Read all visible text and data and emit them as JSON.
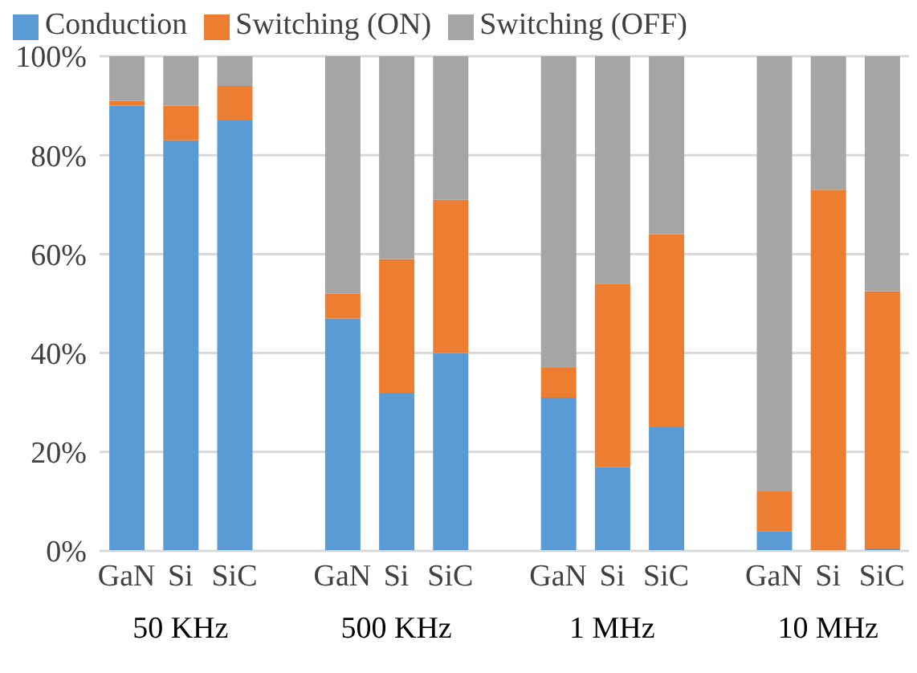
{
  "chart_data": {
    "type": "bar",
    "stacked": true,
    "legend": "top",
    "grid": "y",
    "categories": [
      "GaN",
      "Si",
      "SiC",
      null,
      "GaN",
      "Si",
      "SiC",
      null,
      "GaN",
      "Si",
      "SiC",
      null,
      "GaN",
      "Si",
      "SiC"
    ],
    "series": [
      {
        "name": "Conduction",
        "color": "#5b9bd5",
        "values": [
          90,
          83,
          87,
          null,
          47,
          32,
          40,
          null,
          31,
          17,
          25,
          null,
          4,
          0,
          0.5
        ]
      },
      {
        "name": "Switching (ON)",
        "color": "#ed7d31",
        "values": [
          1,
          7,
          7,
          null,
          5,
          27,
          31,
          null,
          6,
          37,
          39,
          null,
          8,
          73,
          52
        ]
      },
      {
        "name": "Switching (OFF)",
        "color": "#a5a5a5",
        "values": [
          9,
          10,
          6,
          null,
          48,
          41,
          29,
          null,
          63,
          46,
          36,
          null,
          88,
          27,
          47.5
        ]
      }
    ],
    "ylim": [
      0,
      100
    ],
    "yticks": [
      {
        "value": 0,
        "label": "0%"
      },
      {
        "value": 20,
        "label": "20%"
      },
      {
        "value": 40,
        "label": "40%"
      },
      {
        "value": 60,
        "label": "60%"
      },
      {
        "value": 80,
        "label": "80%"
      },
      {
        "value": 100,
        "label": "100%"
      }
    ],
    "annotations": [
      "50 KHz",
      "500 KHz",
      "1 MHz",
      "10 MHz"
    ]
  }
}
